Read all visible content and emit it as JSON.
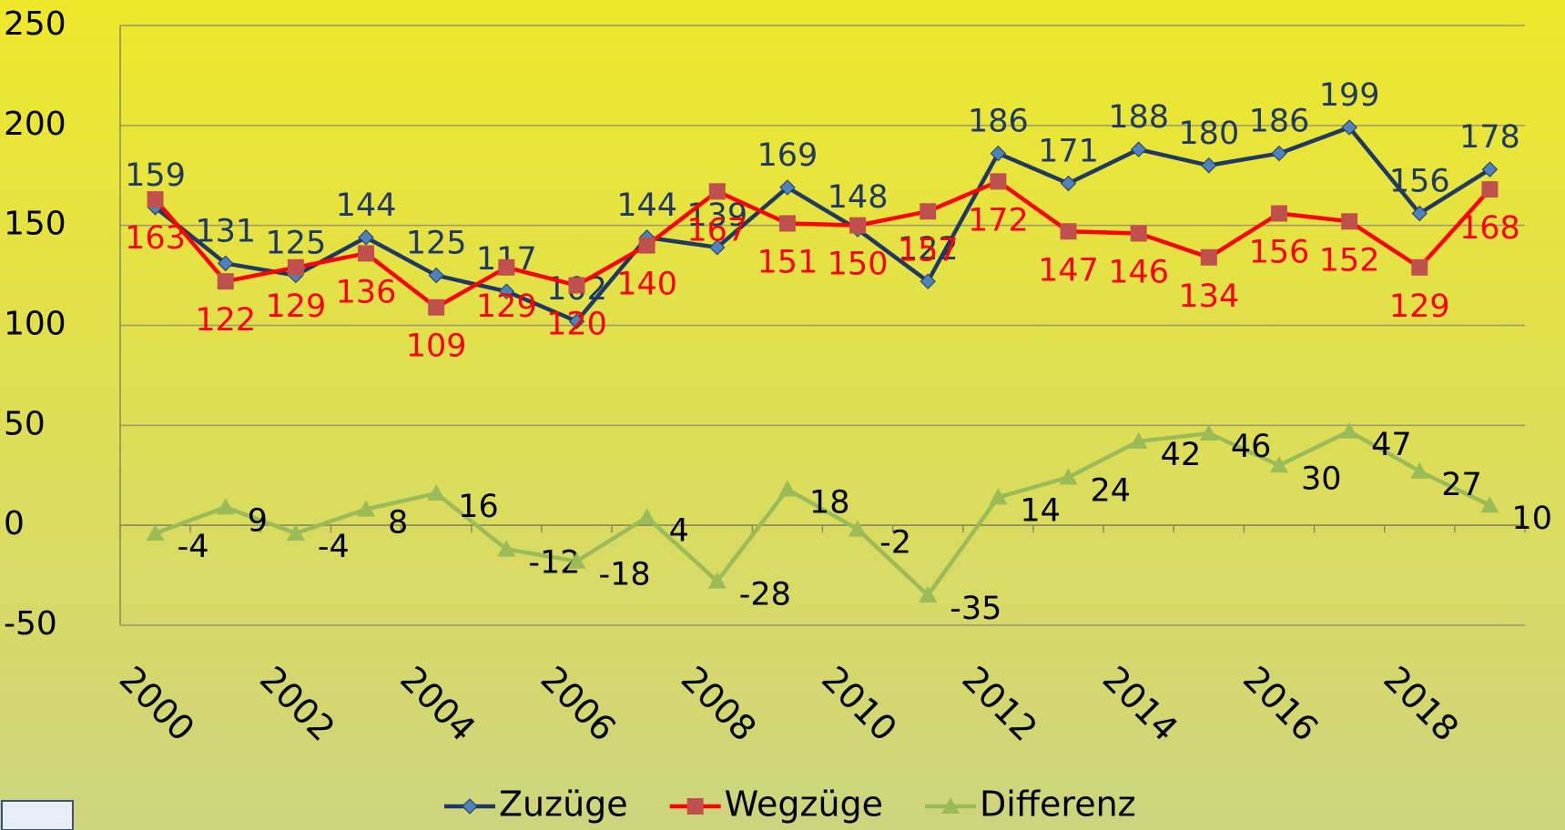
{
  "chart_data": {
    "type": "line",
    "categories": [
      "2000",
      null,
      "2002",
      null,
      "2004",
      null,
      "2006",
      null,
      "2008",
      null,
      "2010",
      null,
      "2012",
      null,
      "2014",
      null,
      "2016",
      null,
      "2018",
      null
    ],
    "series": [
      {
        "name": "Zuzüge",
        "color": "#1f3864",
        "marker_color": "#4f81bd",
        "marker": "diamond",
        "values": [
          159,
          131,
          125,
          144,
          125,
          117,
          102,
          144,
          139,
          169,
          148,
          122,
          186,
          171,
          188,
          180,
          186,
          199,
          156,
          178
        ]
      },
      {
        "name": "Wegzüge",
        "color": "#ff0000",
        "marker_color": "#c0504d",
        "marker": "square",
        "values": [
          163,
          122,
          129,
          136,
          109,
          129,
          120,
          140,
          167,
          151,
          150,
          157,
          172,
          147,
          146,
          134,
          156,
          152,
          129,
          168
        ]
      },
      {
        "name": "Differenz",
        "color": "#9bbb59",
        "marker_color": "#9bbb59",
        "marker": "triangle",
        "values": [
          -4,
          9,
          -4,
          8,
          16,
          -12,
          -18,
          4,
          -28,
          18,
          -2,
          -35,
          14,
          24,
          42,
          46,
          30,
          47,
          27,
          10
        ]
      }
    ],
    "ylim": [
      -50,
      250
    ],
    "yticks": [
      -50,
      0,
      50,
      100,
      150,
      200,
      250
    ],
    "grid": true,
    "legend": "bottom"
  }
}
